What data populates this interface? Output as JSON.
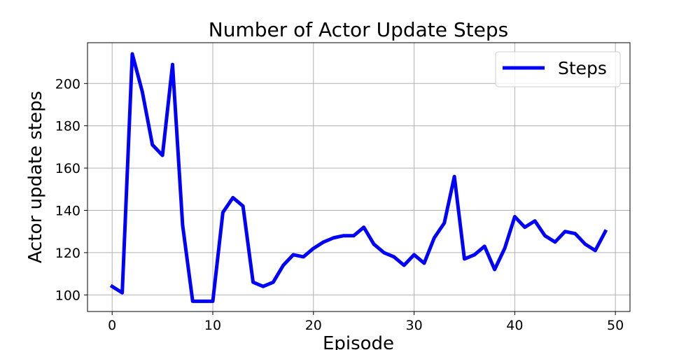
{
  "chart_data": {
    "type": "line",
    "title": "Number of Actor Update Steps",
    "xlabel": "Episode",
    "ylabel": "Actor update steps",
    "xlim": [
      -2.45,
      51.45
    ],
    "ylim": [
      92.15,
      219.3
    ],
    "xticks": [
      0,
      10,
      20,
      30,
      40,
      50
    ],
    "yticks": [
      100,
      120,
      140,
      160,
      180,
      200
    ],
    "grid": true,
    "legend_position": "top-right",
    "series": [
      {
        "name": "Steps",
        "color": "#0000ff",
        "x": [
          0,
          1,
          2,
          3,
          4,
          5,
          6,
          7,
          8,
          9,
          10,
          11,
          12,
          13,
          14,
          15,
          16,
          17,
          18,
          19,
          20,
          21,
          22,
          23,
          24,
          25,
          26,
          27,
          28,
          29,
          30,
          31,
          32,
          33,
          34,
          35,
          36,
          37,
          38,
          39,
          40,
          41,
          42,
          43,
          44,
          45,
          46,
          47,
          48,
          49
        ],
        "y": [
          104,
          101,
          214,
          196,
          171,
          166,
          209,
          133,
          97,
          97,
          97,
          139,
          146,
          142,
          106,
          104,
          106,
          114,
          119,
          118,
          122,
          125,
          127,
          128,
          128,
          132,
          124,
          120,
          118,
          114,
          119,
          115,
          127,
          134,
          156,
          117,
          119,
          123,
          112,
          122,
          137,
          132,
          135,
          128,
          125,
          130,
          129,
          124,
          121,
          130
        ]
      }
    ]
  }
}
